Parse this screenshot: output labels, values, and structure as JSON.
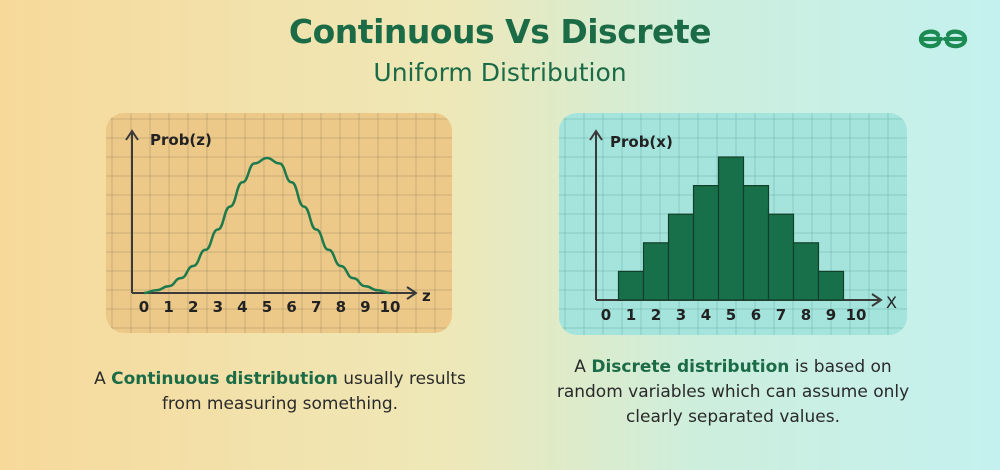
{
  "header": {
    "title": "Continuous Vs Discrete",
    "subtitle": "Uniform Distribution",
    "logo_icon": "geeksforgeeks-logo",
    "logo_color": "#1c8a53"
  },
  "colors": {
    "brand_green": "#1c6b47",
    "bar_fill": "#177049",
    "curve_stroke": "#1d7a4c",
    "left_panel_bg": "#ecc989",
    "right_panel_bg": "#a4e4dc"
  },
  "chart_data": [
    {
      "type": "line",
      "title": "",
      "ylabel": "Prob(z)",
      "xlabel": "z",
      "x_ticks": [
        "0",
        "1",
        "2",
        "3",
        "4",
        "5",
        "6",
        "7",
        "8",
        "9",
        "10"
      ],
      "xlim": [
        0,
        10
      ],
      "ylim": [
        0,
        1
      ],
      "grid": true,
      "series": [
        {
          "x": [
            0,
            0.5,
            1,
            1.5,
            2,
            2.5,
            3,
            3.5,
            4,
            4.5,
            5,
            5.5,
            6,
            6.5,
            7,
            7.5,
            8,
            8.5,
            9,
            9.5,
            10
          ],
          "values": [
            0.0,
            0.02,
            0.05,
            0.11,
            0.2,
            0.32,
            0.47,
            0.64,
            0.82,
            0.96,
            1.0,
            0.96,
            0.82,
            0.64,
            0.47,
            0.32,
            0.2,
            0.11,
            0.05,
            0.02,
            0.0
          ]
        }
      ]
    },
    {
      "type": "bar",
      "title": "",
      "ylabel": "Prob(x)",
      "xlabel": "X",
      "x_ticks": [
        "0",
        "1",
        "2",
        "3",
        "4",
        "5",
        "6",
        "7",
        "8",
        "9",
        "10"
      ],
      "categories": [
        "1",
        "2",
        "3",
        "4",
        "5",
        "6",
        "7",
        "8",
        "9"
      ],
      "values": [
        1,
        2,
        3,
        4,
        5,
        4,
        3,
        2,
        1
      ],
      "ylim": [
        0,
        5
      ],
      "grid": true
    }
  ],
  "captions": {
    "left": {
      "prefix": "A ",
      "bold": "Continuous distribution",
      "suffix": " usually results from measuring something."
    },
    "right": {
      "prefix": "A ",
      "bold": "Discrete distribution",
      "suffix": " is based on random variables which can assume only clearly separated values."
    }
  }
}
